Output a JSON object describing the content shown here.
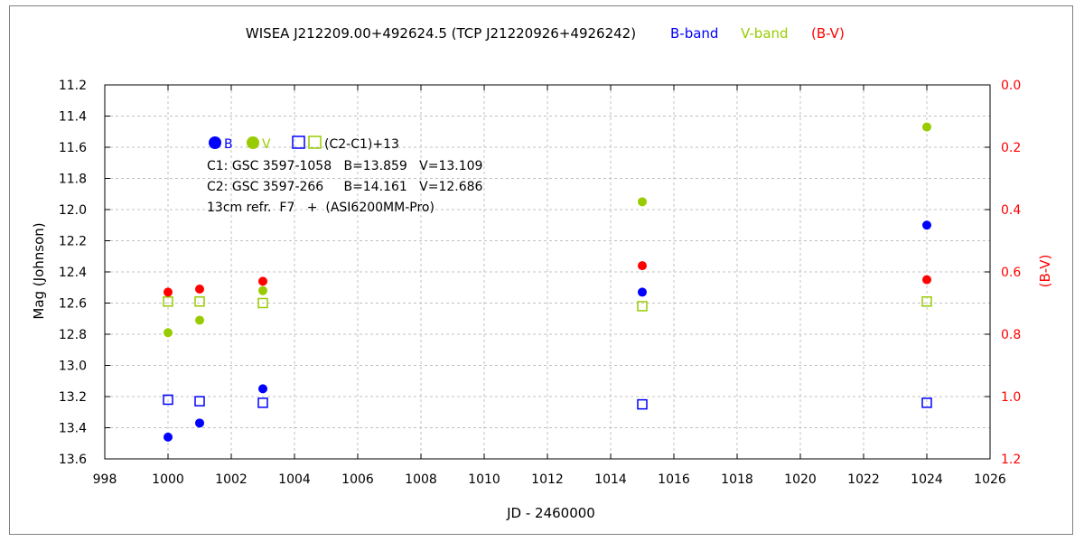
{
  "chart_data": {
    "type": "scatter",
    "title": "WISEA J212209.00+492624.5 (TCP J21220926+4926242)",
    "title_legend": [
      {
        "label": "B-band",
        "color": "#0000ff"
      },
      {
        "label": "V-band",
        "color": "#99cc00"
      },
      {
        "label": "(B-V)",
        "color": "#ff0000"
      }
    ],
    "xlabel": "JD - 2460000",
    "ylabel": "Mag (Johnson)",
    "y2label": "(B-V)",
    "xlim": [
      998,
      1026
    ],
    "ylim": [
      11.2,
      13.6
    ],
    "y_inverted": true,
    "y2lim": [
      0.0,
      1.2
    ],
    "y2_inverted": true,
    "grid": true,
    "x_ticks": [
      "998",
      "1000",
      "1002",
      "1004",
      "1006",
      "1008",
      "1010",
      "1012",
      "1014",
      "1016",
      "1018",
      "1020",
      "1022",
      "1024",
      "1026"
    ],
    "y_ticks": [
      "11.2",
      "11.4",
      "11.6",
      "11.8",
      "12.0",
      "12.2",
      "12.4",
      "12.6",
      "12.8",
      "13.0",
      "13.2",
      "13.4",
      "13.6"
    ],
    "y2_ticks": [
      "0.0",
      "0.2",
      "0.4",
      "0.6",
      "0.8",
      "1.0",
      "1.2"
    ],
    "series": [
      {
        "name": "B",
        "axis": "left",
        "marker": "filled-circle",
        "color": "#0000ff",
        "x": [
          1000,
          1001,
          1003,
          1015,
          1024
        ],
        "y": [
          13.46,
          13.37,
          13.15,
          12.53,
          12.1
        ]
      },
      {
        "name": "V",
        "axis": "left",
        "marker": "filled-circle",
        "color": "#99cc00",
        "x": [
          1000,
          1001,
          1003,
          1015,
          1024
        ],
        "y": [
          12.79,
          12.71,
          12.52,
          11.95,
          11.47
        ]
      },
      {
        "name": "(C2-C1)+13 B",
        "axis": "left",
        "marker": "open-square",
        "color": "#0000ff",
        "x": [
          1000,
          1001,
          1003,
          1015,
          1024
        ],
        "y": [
          13.22,
          13.23,
          13.24,
          13.25,
          13.24
        ]
      },
      {
        "name": "(C2-C1)+13 V",
        "axis": "left",
        "marker": "open-square",
        "color": "#99cc00",
        "x": [
          1000,
          1001,
          1003,
          1015,
          1024
        ],
        "y": [
          12.59,
          12.59,
          12.6,
          12.62,
          12.59
        ]
      },
      {
        "name": "(B-V)",
        "axis": "right",
        "marker": "filled-circle",
        "color": "#ff0000",
        "x": [
          1000,
          1001,
          1003,
          1015,
          1024
        ],
        "y": [
          0.665,
          0.655,
          0.63,
          0.58,
          0.625
        ]
      }
    ],
    "legend": {
      "b_label": "B",
      "v_label": "V",
      "comp_label": "(C2-C1)+13",
      "lines": [
        "C1: GSC 3597-1058   B=13.859   V=13.109",
        "C2: GSC 3597-266     B=14.161   V=12.686",
        "13cm refr.  F7   +  (ASI6200MM-Pro)"
      ]
    }
  }
}
